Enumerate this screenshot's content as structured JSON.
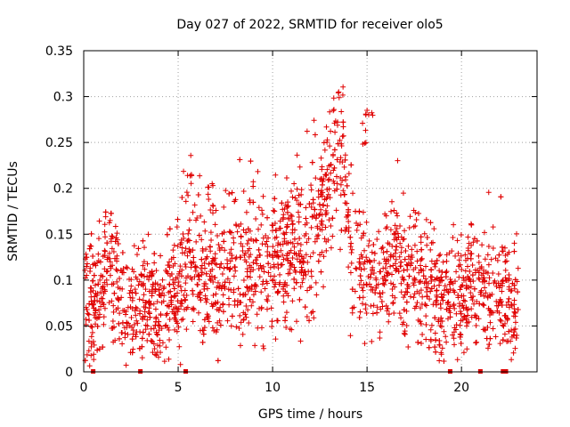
{
  "chart_data": {
    "type": "scatter",
    "title": "Day 027 of 2022, SRMTID for receiver olo5",
    "xlabel": "GPS time / hours",
    "ylabel": "SRMTID / TECUs",
    "xlim": [
      0,
      24
    ],
    "ylim": [
      0,
      0.35
    ],
    "xticks": [
      0,
      5,
      10,
      15,
      20
    ],
    "xtick_labels": [
      "0",
      "5",
      "10",
      "15",
      "20"
    ],
    "yticks": [
      0,
      0.05,
      0.1,
      0.15,
      0.2,
      0.25,
      0.3,
      0.35
    ],
    "ytick_labels": [
      "0",
      "0.05",
      "0.1",
      "0.15",
      "0.2",
      "0.25",
      "0.3",
      "0.35"
    ],
    "grid": true,
    "marker": "+",
    "color": "#e00000",
    "trend": [
      [
        0.0,
        0.08
      ],
      [
        0.5,
        0.07
      ],
      [
        1.0,
        0.09
      ],
      [
        1.3,
        0.12
      ],
      [
        1.7,
        0.1
      ],
      [
        2.2,
        0.07
      ],
      [
        2.7,
        0.06
      ],
      [
        3.2,
        0.08
      ],
      [
        3.6,
        0.09
      ],
      [
        4.0,
        0.06
      ],
      [
        4.4,
        0.07
      ],
      [
        5.0,
        0.09
      ],
      [
        5.6,
        0.13
      ],
      [
        6.0,
        0.11
      ],
      [
        6.5,
        0.1
      ],
      [
        7.0,
        0.1
      ],
      [
        7.5,
        0.11
      ],
      [
        8.0,
        0.11
      ],
      [
        8.5,
        0.12
      ],
      [
        9.0,
        0.12
      ],
      [
        9.5,
        0.11
      ],
      [
        10.0,
        0.12
      ],
      [
        10.5,
        0.12
      ],
      [
        11.0,
        0.13
      ],
      [
        11.5,
        0.13
      ],
      [
        12.0,
        0.14
      ],
      [
        12.5,
        0.17
      ],
      [
        13.0,
        0.2
      ],
      [
        13.5,
        0.23
      ],
      [
        13.8,
        0.21
      ],
      [
        14.2,
        0.13
      ],
      [
        14.6,
        0.12
      ],
      [
        15.0,
        0.11
      ],
      [
        15.5,
        0.1
      ],
      [
        16.0,
        0.1
      ],
      [
        16.5,
        0.12
      ],
      [
        17.0,
        0.11
      ],
      [
        17.5,
        0.11
      ],
      [
        18.0,
        0.1
      ],
      [
        18.5,
        0.08
      ],
      [
        19.0,
        0.07
      ],
      [
        19.5,
        0.08
      ],
      [
        20.0,
        0.08
      ],
      [
        20.5,
        0.09
      ],
      [
        21.0,
        0.08
      ],
      [
        21.5,
        0.09
      ],
      [
        22.0,
        0.08
      ],
      [
        22.5,
        0.07
      ],
      [
        23.0,
        0.07
      ]
    ],
    "peaks": [
      [
        1.4,
        0.165
      ],
      [
        5.7,
        0.215
      ],
      [
        6.8,
        0.205
      ],
      [
        10.8,
        0.185
      ],
      [
        13.5,
        0.305
      ],
      [
        15.0,
        0.285
      ],
      [
        16.6,
        0.17
      ],
      [
        20.4,
        0.14
      ],
      [
        22.3,
        0.135
      ]
    ],
    "gap_markers_x": [
      0.5,
      3.0,
      5.4,
      19.4,
      21.0,
      22.2,
      22.35
    ]
  }
}
